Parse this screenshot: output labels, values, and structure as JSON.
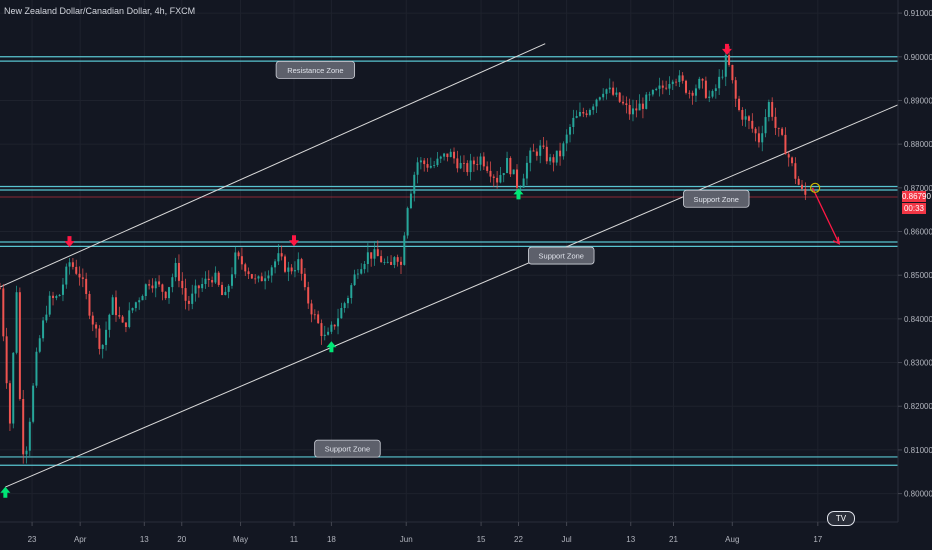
{
  "header": {
    "title": "New Zealand Dollar/Canadian Dollar, 4h, FXCM"
  },
  "price_tags": {
    "last_price": "0.86790",
    "countdown": "00:33"
  },
  "logo": {
    "text": "TV"
  },
  "colors": {
    "background": "#131722",
    "zone_line": "#58c4d0",
    "trend_line": "#d9d9d9",
    "bull_candle": "#26a69a",
    "bear_candle": "#ef5350",
    "up_arrow": "#00e676",
    "down_arrow": "#ff1744",
    "last_price": "#f23645",
    "forecast_arrow": "#ff1744"
  },
  "chart_data": {
    "type": "candlestick",
    "title": "New Zealand Dollar/Canadian Dollar, 4h, FXCM",
    "y_ticks": [
      "0.91000",
      "0.90000",
      "0.89000",
      "0.88000",
      "0.87000",
      "0.86000",
      "0.85000",
      "0.84000",
      "0.83000",
      "0.82000",
      "0.81000",
      "0.80000"
    ],
    "y_range": [
      0.7935,
      0.913
    ],
    "x_ticks": [
      "23",
      "Apr",
      "13",
      "20",
      "May",
      "11",
      "18",
      "Jun",
      "15",
      "22",
      "Jul",
      "13",
      "21",
      "Aug",
      "17"
    ],
    "x_tick_days": [
      -9,
      0,
      12,
      19,
      30,
      40,
      47,
      61,
      75,
      82,
      91,
      103,
      111,
      122,
      138
    ],
    "x_day_range": [
      -15,
      153
    ],
    "price_path": [
      [
        -15,
        0.847
      ],
      [
        -13,
        0.814
      ],
      [
        -12,
        0.851
      ],
      [
        -11,
        0.81
      ],
      [
        -10,
        0.811
      ],
      [
        -8,
        0.833
      ],
      [
        -6,
        0.844
      ],
      [
        -4,
        0.845
      ],
      [
        -2,
        0.853
      ],
      [
        0,
        0.85
      ],
      [
        2,
        0.841
      ],
      [
        4,
        0.833
      ],
      [
        6,
        0.844
      ],
      [
        8,
        0.838
      ],
      [
        10,
        0.843
      ],
      [
        13,
        0.849
      ],
      [
        16,
        0.846
      ],
      [
        18,
        0.852
      ],
      [
        20,
        0.843
      ],
      [
        22,
        0.847
      ],
      [
        25,
        0.85
      ],
      [
        27,
        0.844
      ],
      [
        29,
        0.854
      ],
      [
        31,
        0.852
      ],
      [
        33,
        0.848
      ],
      [
        35,
        0.851
      ],
      [
        37,
        0.854
      ],
      [
        39,
        0.851
      ],
      [
        41,
        0.853
      ],
      [
        42,
        0.846
      ],
      [
        44,
        0.84
      ],
      [
        46,
        0.835
      ],
      [
        48,
        0.84
      ],
      [
        50,
        0.845
      ],
      [
        52,
        0.852
      ],
      [
        54,
        0.855
      ],
      [
        56,
        0.854
      ],
      [
        58,
        0.851
      ],
      [
        59,
        0.856
      ],
      [
        60,
        0.852
      ],
      [
        61,
        0.865
      ],
      [
        63,
        0.876
      ],
      [
        66,
        0.875
      ],
      [
        69,
        0.878
      ],
      [
        72,
        0.874
      ],
      [
        75,
        0.877
      ],
      [
        78,
        0.872
      ],
      [
        80,
        0.876
      ],
      [
        82,
        0.87
      ],
      [
        84,
        0.877
      ],
      [
        86,
        0.879
      ],
      [
        88,
        0.876
      ],
      [
        90,
        0.878
      ],
      [
        92,
        0.885
      ],
      [
        95,
        0.888
      ],
      [
        98,
        0.893
      ],
      [
        100,
        0.891
      ],
      [
        103,
        0.887
      ],
      [
        106,
        0.89
      ],
      [
        109,
        0.893
      ],
      [
        111,
        0.896
      ],
      [
        114,
        0.892
      ],
      [
        116,
        0.894
      ],
      [
        118,
        0.89
      ],
      [
        120,
        0.896
      ],
      [
        121,
        0.9
      ],
      [
        123,
        0.888
      ],
      [
        125,
        0.885
      ],
      [
        127,
        0.881
      ],
      [
        129,
        0.89
      ],
      [
        130,
        0.884
      ],
      [
        132,
        0.879
      ],
      [
        134,
        0.872
      ],
      [
        135,
        0.869
      ],
      [
        136,
        0.8679
      ]
    ],
    "zones": [
      {
        "label": "Resistance Zone",
        "y_top": 0.9,
        "y_bottom": 0.899,
        "label_day": 44,
        "label_price": 0.897
      },
      {
        "label": "Support Zone",
        "y_top": 0.8703,
        "y_bottom": 0.8695,
        "label_day": 119,
        "label_price": 0.8675
      },
      {
        "label": "Support Zone",
        "y_top": 0.8576,
        "y_bottom": 0.8566,
        "label_day": 90,
        "label_price": 0.8545
      },
      {
        "label": "Support Zone",
        "y_top": 0.8084,
        "y_bottom": 0.8065,
        "label_day": 50,
        "label_price": 0.8103
      }
    ],
    "trendlines": [
      {
        "from": [
          -15,
          0.8473
        ],
        "to": [
          87,
          0.903
        ]
      },
      {
        "from": [
          -14,
          0.8015
        ],
        "to": [
          153,
          0.889
        ]
      }
    ],
    "markers": [
      {
        "type": "up",
        "day": -14,
        "price": 0.8002
      },
      {
        "type": "down",
        "day": -2,
        "price": 0.8578
      },
      {
        "type": "down",
        "day": 40,
        "price": 0.858
      },
      {
        "type": "up",
        "day": 47,
        "price": 0.8335
      },
      {
        "type": "up",
        "day": 82,
        "price": 0.8685
      },
      {
        "type": "down",
        "day": 121,
        "price": 0.9018
      }
    ],
    "last_price": 0.8679,
    "forecast": {
      "from": [
        137,
        0.87
      ],
      "to": [
        142,
        0.8572
      ]
    },
    "target_circle": {
      "day": 137.5,
      "price": 0.87
    }
  }
}
